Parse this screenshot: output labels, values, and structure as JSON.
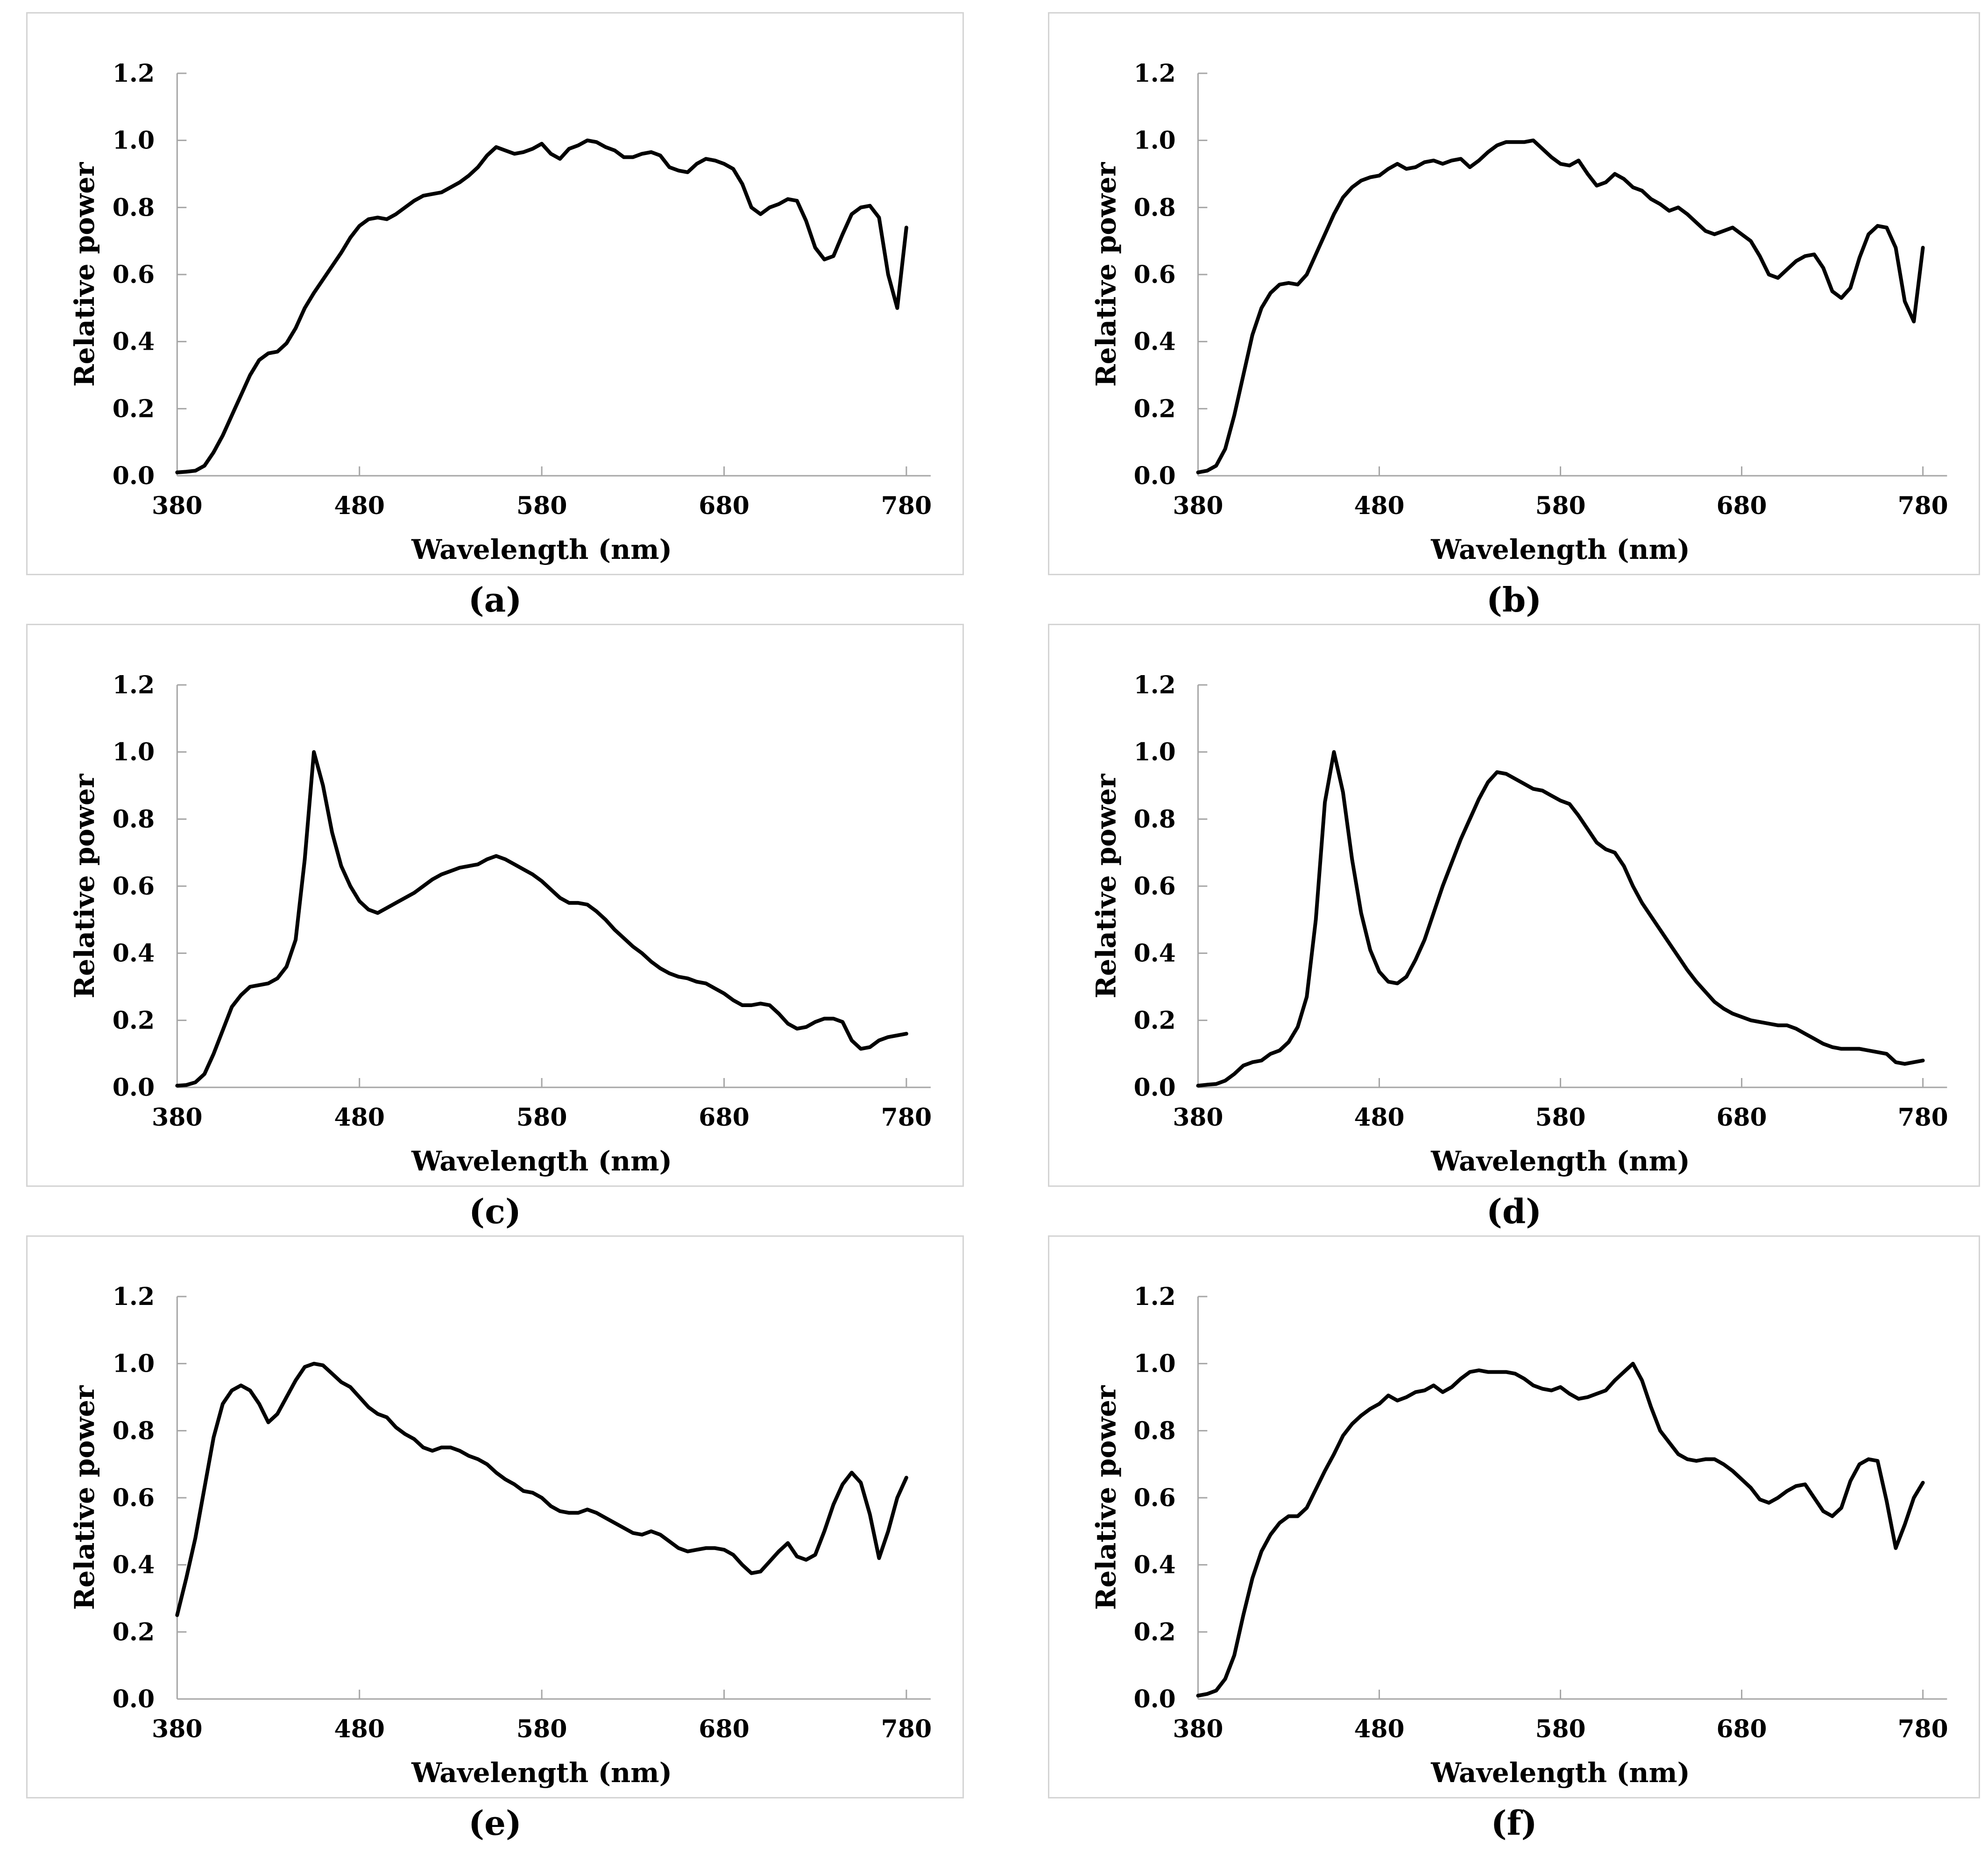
{
  "figure": {
    "captions": [
      "(a)",
      "(b)",
      "(c)",
      "(d)",
      "(e)",
      "(f)"
    ]
  },
  "style_colors": {
    "axis": "#a6a6a6",
    "curve": "#000000",
    "panel_border": "#d4d4d4",
    "text": "#000000"
  },
  "chart_data": [
    {
      "panel": "a",
      "type": "line",
      "title": "",
      "xlabel": "Wavelength (nm)",
      "ylabel": "Relative power",
      "xlim": [
        380,
        780
      ],
      "ylim": [
        0,
        1.2
      ],
      "x_ticks": [
        380,
        480,
        580,
        680,
        780
      ],
      "x_tick_labels": [
        "380",
        "480",
        "580",
        "680",
        "780"
      ],
      "y_ticks": [
        0,
        0.2,
        0.4,
        0.6,
        0.8,
        1.0,
        1.2
      ],
      "y_tick_labels": [
        "0.0",
        "0.2",
        "0.4",
        "0.6",
        "0.8",
        "1.0",
        "1.2"
      ],
      "grid": false,
      "legend": null,
      "x_start": 380,
      "x_step": 5,
      "values": [
        0.01,
        0.012,
        0.015,
        0.03,
        0.07,
        0.12,
        0.18,
        0.24,
        0.3,
        0.345,
        0.365,
        0.37,
        0.395,
        0.44,
        0.5,
        0.545,
        0.585,
        0.625,
        0.665,
        0.71,
        0.745,
        0.765,
        0.77,
        0.765,
        0.78,
        0.8,
        0.82,
        0.835,
        0.84,
        0.845,
        0.86,
        0.875,
        0.895,
        0.92,
        0.955,
        0.98,
        0.97,
        0.96,
        0.965,
        0.975,
        0.99,
        0.96,
        0.945,
        0.975,
        0.985,
        1.0,
        0.995,
        0.98,
        0.97,
        0.95,
        0.95,
        0.96,
        0.965,
        0.955,
        0.92,
        0.91,
        0.905,
        0.93,
        0.945,
        0.94,
        0.93,
        0.915,
        0.87,
        0.8,
        0.78,
        0.8,
        0.81,
        0.825,
        0.82,
        0.76,
        0.68,
        0.645,
        0.655,
        0.72,
        0.78,
        0.8,
        0.805,
        0.77,
        0.6,
        0.5,
        0.74
      ]
    },
    {
      "panel": "b",
      "type": "line",
      "title": "",
      "xlabel": "Wavelength (nm)",
      "ylabel": "Relative power",
      "xlim": [
        380,
        780
      ],
      "ylim": [
        0,
        1.2
      ],
      "x_ticks": [
        380,
        480,
        580,
        680,
        780
      ],
      "x_tick_labels": [
        "380",
        "480",
        "580",
        "680",
        "780"
      ],
      "y_ticks": [
        0,
        0.2,
        0.4,
        0.6,
        0.8,
        1.0,
        1.2
      ],
      "y_tick_labels": [
        "0.0",
        "0.2",
        "0.4",
        "0.6",
        "0.8",
        "1.0",
        "1.2"
      ],
      "grid": false,
      "legend": null,
      "x_start": 380,
      "x_step": 5,
      "values": [
        0.01,
        0.015,
        0.03,
        0.08,
        0.18,
        0.3,
        0.42,
        0.5,
        0.545,
        0.57,
        0.575,
        0.57,
        0.6,
        0.66,
        0.72,
        0.78,
        0.83,
        0.86,
        0.88,
        0.89,
        0.895,
        0.915,
        0.93,
        0.915,
        0.92,
        0.935,
        0.94,
        0.93,
        0.94,
        0.945,
        0.92,
        0.94,
        0.965,
        0.985,
        0.995,
        0.995,
        0.995,
        1.0,
        0.975,
        0.95,
        0.93,
        0.925,
        0.94,
        0.9,
        0.865,
        0.875,
        0.9,
        0.885,
        0.86,
        0.85,
        0.825,
        0.81,
        0.79,
        0.8,
        0.78,
        0.755,
        0.73,
        0.72,
        0.73,
        0.74,
        0.72,
        0.7,
        0.655,
        0.6,
        0.59,
        0.615,
        0.64,
        0.655,
        0.66,
        0.62,
        0.55,
        0.53,
        0.56,
        0.65,
        0.72,
        0.745,
        0.74,
        0.68,
        0.52,
        0.46,
        0.68
      ]
    },
    {
      "panel": "c",
      "type": "line",
      "title": "",
      "xlabel": "Wavelength (nm)",
      "ylabel": "Relative power",
      "xlim": [
        380,
        780
      ],
      "ylim": [
        0,
        1.2
      ],
      "x_ticks": [
        380,
        480,
        580,
        680,
        780
      ],
      "x_tick_labels": [
        "380",
        "480",
        "580",
        "680",
        "780"
      ],
      "y_ticks": [
        0,
        0.2,
        0.4,
        0.6,
        0.8,
        1.0,
        1.2
      ],
      "y_tick_labels": [
        "0.0",
        "0.2",
        "0.4",
        "0.6",
        "0.8",
        "1.0",
        "1.2"
      ],
      "grid": false,
      "legend": null,
      "x_start": 380,
      "x_step": 5,
      "values": [
        0.005,
        0.007,
        0.015,
        0.04,
        0.1,
        0.17,
        0.24,
        0.275,
        0.3,
        0.305,
        0.31,
        0.325,
        0.36,
        0.44,
        0.68,
        1.0,
        0.9,
        0.76,
        0.66,
        0.6,
        0.555,
        0.53,
        0.52,
        0.535,
        0.55,
        0.565,
        0.58,
        0.6,
        0.62,
        0.635,
        0.645,
        0.655,
        0.66,
        0.665,
        0.68,
        0.69,
        0.68,
        0.665,
        0.65,
        0.635,
        0.615,
        0.59,
        0.565,
        0.55,
        0.55,
        0.545,
        0.525,
        0.5,
        0.47,
        0.445,
        0.42,
        0.4,
        0.375,
        0.355,
        0.34,
        0.33,
        0.325,
        0.315,
        0.31,
        0.295,
        0.28,
        0.26,
        0.245,
        0.245,
        0.25,
        0.245,
        0.22,
        0.19,
        0.175,
        0.18,
        0.195,
        0.205,
        0.205,
        0.195,
        0.14,
        0.115,
        0.12,
        0.14,
        0.15,
        0.155,
        0.16
      ]
    },
    {
      "panel": "d",
      "type": "line",
      "title": "",
      "xlabel": "Wavelength (nm)",
      "ylabel": "Relative power",
      "xlim": [
        380,
        780
      ],
      "ylim": [
        0,
        1.2
      ],
      "x_ticks": [
        380,
        480,
        580,
        680,
        780
      ],
      "x_tick_labels": [
        "380",
        "480",
        "580",
        "680",
        "780"
      ],
      "y_ticks": [
        0,
        0.2,
        0.4,
        0.6,
        0.8,
        1.0,
        1.2
      ],
      "y_tick_labels": [
        "0.0",
        "0.2",
        "0.4",
        "0.6",
        "0.8",
        "1.0",
        "1.2"
      ],
      "grid": false,
      "legend": null,
      "x_start": 380,
      "x_step": 5,
      "values": [
        0.005,
        0.008,
        0.01,
        0.02,
        0.04,
        0.065,
        0.075,
        0.08,
        0.1,
        0.11,
        0.135,
        0.18,
        0.27,
        0.5,
        0.85,
        1.0,
        0.88,
        0.68,
        0.52,
        0.41,
        0.345,
        0.315,
        0.31,
        0.33,
        0.38,
        0.44,
        0.52,
        0.6,
        0.67,
        0.74,
        0.8,
        0.86,
        0.91,
        0.94,
        0.935,
        0.92,
        0.905,
        0.89,
        0.885,
        0.87,
        0.855,
        0.845,
        0.81,
        0.77,
        0.73,
        0.71,
        0.7,
        0.66,
        0.6,
        0.55,
        0.51,
        0.47,
        0.43,
        0.39,
        0.35,
        0.315,
        0.285,
        0.255,
        0.235,
        0.22,
        0.21,
        0.2,
        0.195,
        0.19,
        0.185,
        0.185,
        0.175,
        0.16,
        0.145,
        0.13,
        0.12,
        0.115,
        0.115,
        0.115,
        0.11,
        0.105,
        0.1,
        0.075,
        0.07,
        0.075,
        0.08
      ]
    },
    {
      "panel": "e",
      "type": "line",
      "title": "",
      "xlabel": "Wavelength (nm)",
      "ylabel": "Relative power",
      "xlim": [
        380,
        780
      ],
      "ylim": [
        0,
        1.2
      ],
      "x_ticks": [
        380,
        480,
        580,
        680,
        780
      ],
      "x_tick_labels": [
        "380",
        "480",
        "580",
        "680",
        "780"
      ],
      "y_ticks": [
        0,
        0.2,
        0.4,
        0.6,
        0.8,
        1.0,
        1.2
      ],
      "y_tick_labels": [
        "0.0",
        "0.2",
        "0.4",
        "0.6",
        "0.8",
        "1.0",
        "1.2"
      ],
      "grid": false,
      "legend": null,
      "x_start": 380,
      "x_step": 5,
      "values": [
        0.25,
        0.36,
        0.48,
        0.63,
        0.78,
        0.88,
        0.92,
        0.935,
        0.92,
        0.88,
        0.825,
        0.85,
        0.9,
        0.95,
        0.99,
        1.0,
        0.995,
        0.97,
        0.945,
        0.93,
        0.9,
        0.87,
        0.85,
        0.84,
        0.81,
        0.79,
        0.775,
        0.75,
        0.74,
        0.75,
        0.75,
        0.74,
        0.725,
        0.715,
        0.7,
        0.675,
        0.655,
        0.64,
        0.62,
        0.615,
        0.6,
        0.575,
        0.56,
        0.555,
        0.555,
        0.565,
        0.555,
        0.54,
        0.525,
        0.51,
        0.495,
        0.49,
        0.5,
        0.49,
        0.47,
        0.45,
        0.44,
        0.445,
        0.45,
        0.45,
        0.445,
        0.43,
        0.4,
        0.375,
        0.38,
        0.41,
        0.44,
        0.465,
        0.425,
        0.415,
        0.43,
        0.5,
        0.58,
        0.64,
        0.675,
        0.645,
        0.55,
        0.42,
        0.5,
        0.6,
        0.66
      ]
    },
    {
      "panel": "f",
      "type": "line",
      "title": "",
      "xlabel": "Wavelength (nm)",
      "ylabel": "Relative power",
      "xlim": [
        380,
        780
      ],
      "ylim": [
        0,
        1.2
      ],
      "x_ticks": [
        380,
        480,
        580,
        680,
        780
      ],
      "x_tick_labels": [
        "380",
        "480",
        "580",
        "680",
        "780"
      ],
      "y_ticks": [
        0,
        0.2,
        0.4,
        0.6,
        0.8,
        1.0,
        1.2
      ],
      "y_tick_labels": [
        "0.0",
        "0.2",
        "0.4",
        "0.6",
        "0.8",
        "1.0",
        "1.2"
      ],
      "grid": false,
      "legend": null,
      "x_start": 380,
      "x_step": 5,
      "values": [
        0.01,
        0.015,
        0.025,
        0.06,
        0.13,
        0.25,
        0.36,
        0.44,
        0.49,
        0.525,
        0.545,
        0.545,
        0.57,
        0.625,
        0.68,
        0.73,
        0.785,
        0.82,
        0.845,
        0.865,
        0.88,
        0.905,
        0.89,
        0.9,
        0.915,
        0.92,
        0.935,
        0.915,
        0.93,
        0.955,
        0.975,
        0.98,
        0.975,
        0.975,
        0.975,
        0.97,
        0.955,
        0.935,
        0.925,
        0.92,
        0.93,
        0.91,
        0.895,
        0.9,
        0.91,
        0.92,
        0.95,
        0.975,
        1.0,
        0.95,
        0.87,
        0.8,
        0.765,
        0.73,
        0.715,
        0.71,
        0.715,
        0.715,
        0.7,
        0.68,
        0.655,
        0.63,
        0.595,
        0.585,
        0.6,
        0.62,
        0.635,
        0.64,
        0.6,
        0.56,
        0.545,
        0.57,
        0.65,
        0.7,
        0.715,
        0.71,
        0.59,
        0.45,
        0.52,
        0.6,
        0.645
      ]
    }
  ]
}
